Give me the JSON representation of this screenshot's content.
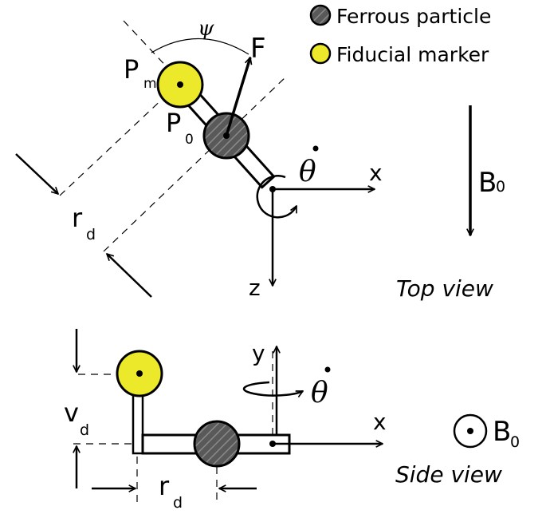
{
  "legend": {
    "ferrous": "Ferrous particle",
    "fiducial": "Fiducial marker"
  },
  "top": {
    "psi": "ψ",
    "force": "F",
    "pm_main": "P",
    "pm_sub": "m",
    "p0_main": "P",
    "p0_sub": "0",
    "theta_dot": "θ",
    "x_axis": "x",
    "z_axis": "z",
    "rd_main": "r",
    "rd_sub": "d",
    "b0_main": "B",
    "b0_sub": "0",
    "caption": "Top view"
  },
  "side": {
    "y_axis": "y",
    "x_axis": "x",
    "theta_dot": "θ",
    "vd_main": "v",
    "vd_sub": "d",
    "rd_main": "r",
    "rd_sub": "d",
    "b0_main": "B",
    "b0_sub": "0",
    "caption": "Side view"
  },
  "colors": {
    "fiducial_fill": "#ece92a",
    "ferrous_fill": "#595959"
  }
}
